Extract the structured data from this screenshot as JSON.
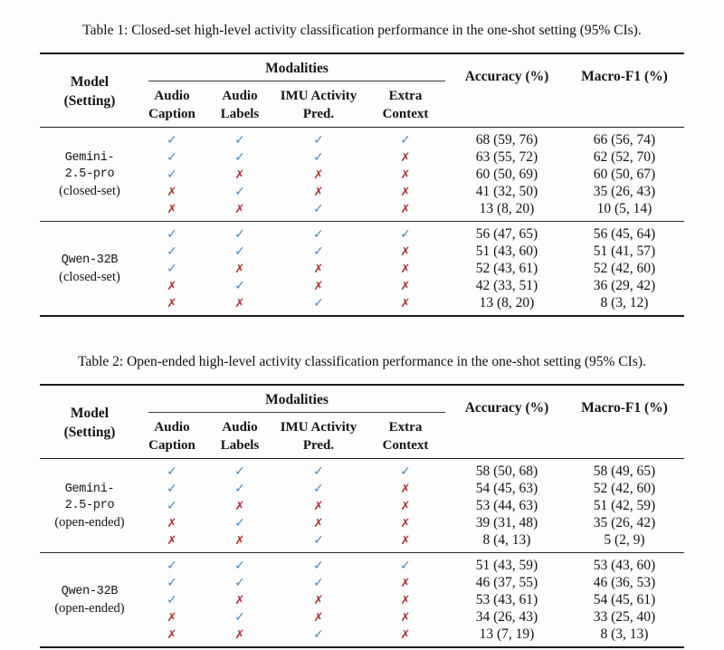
{
  "colors": {
    "check": "#4a86ba",
    "cross": "#ab3232",
    "rule": "#1b1b1b"
  },
  "glyphs": {
    "check": "✓",
    "cross": "✗"
  },
  "header": {
    "model_line1": "Model",
    "model_line2": "(Setting)",
    "modalities": "Modalities",
    "subcols": [
      [
        "Audio",
        "Caption"
      ],
      [
        "Audio",
        "Labels"
      ],
      [
        "IMU Activity",
        "Pred."
      ],
      [
        "Extra",
        "Context"
      ]
    ],
    "accuracy": "Accuracy (%)",
    "macro_f1": "Macro-F1 (%)"
  },
  "tables": [
    {
      "caption": "Table 1: Closed-set high-level activity classification performance in the one-shot setting (95% CIs).",
      "groups": [
        {
          "model_lines": [
            "Gemini-",
            "2.5-pro"
          ],
          "setting": "(closed-set)",
          "rows": [
            {
              "modalities": [
                1,
                1,
                1,
                1
              ],
              "accuracy": "68 (59, 76)",
              "macro_f1": "66 (56, 74)"
            },
            {
              "modalities": [
                1,
                1,
                1,
                0
              ],
              "accuracy": "63 (55, 72)",
              "macro_f1": "62 (52, 70)"
            },
            {
              "modalities": [
                1,
                0,
                0,
                0
              ],
              "accuracy": "60 (50, 69)",
              "macro_f1": "60 (50, 67)"
            },
            {
              "modalities": [
                0,
                1,
                0,
                0
              ],
              "accuracy": "41 (32, 50)",
              "macro_f1": "35 (26, 43)"
            },
            {
              "modalities": [
                0,
                0,
                1,
                0
              ],
              "accuracy": "13 (8, 20)",
              "macro_f1": "10 (5, 14)"
            }
          ]
        },
        {
          "model_lines": [
            "Qwen-32B"
          ],
          "setting": "(closed-set)",
          "rows": [
            {
              "modalities": [
                1,
                1,
                1,
                1
              ],
              "accuracy": "56 (47, 65)",
              "macro_f1": "56 (45, 64)"
            },
            {
              "modalities": [
                1,
                1,
                1,
                0
              ],
              "accuracy": "51 (43, 60)",
              "macro_f1": "51 (41, 57)"
            },
            {
              "modalities": [
                1,
                0,
                0,
                0
              ],
              "accuracy": "52 (43, 61)",
              "macro_f1": "52 (42, 60)"
            },
            {
              "modalities": [
                0,
                1,
                0,
                0
              ],
              "accuracy": "42 (33, 51)",
              "macro_f1": "36 (29, 42)"
            },
            {
              "modalities": [
                0,
                0,
                1,
                0
              ],
              "accuracy": "13 (8, 20)",
              "macro_f1": "8 (3, 12)"
            }
          ]
        }
      ]
    },
    {
      "caption": "Table 2: Open-ended high-level activity classification performance in the one-shot setting (95% CIs).",
      "groups": [
        {
          "model_lines": [
            "Gemini-",
            "2.5-pro"
          ],
          "setting": "(open-ended)",
          "rows": [
            {
              "modalities": [
                1,
                1,
                1,
                1
              ],
              "accuracy": "58 (50, 68)",
              "macro_f1": "58 (49, 65)"
            },
            {
              "modalities": [
                1,
                1,
                1,
                0
              ],
              "accuracy": "54 (45, 63)",
              "macro_f1": "52 (42, 60)"
            },
            {
              "modalities": [
                1,
                0,
                0,
                0
              ],
              "accuracy": "53 (44, 63)",
              "macro_f1": "51 (42, 59)"
            },
            {
              "modalities": [
                0,
                1,
                0,
                0
              ],
              "accuracy": "39 (31, 48)",
              "macro_f1": "35 (26, 42)"
            },
            {
              "modalities": [
                0,
                0,
                1,
                0
              ],
              "accuracy": "8 (4, 13)",
              "macro_f1": "5 (2, 9)"
            }
          ]
        },
        {
          "model_lines": [
            "Qwen-32B"
          ],
          "setting": "(open-ended)",
          "rows": [
            {
              "modalities": [
                1,
                1,
                1,
                1
              ],
              "accuracy": "51 (43, 59)",
              "macro_f1": "53 (43, 60)"
            },
            {
              "modalities": [
                1,
                1,
                1,
                0
              ],
              "accuracy": "46 (37, 55)",
              "macro_f1": "46 (36, 53)"
            },
            {
              "modalities": [
                1,
                0,
                0,
                0
              ],
              "accuracy": "53 (43, 61)",
              "macro_f1": "54 (45, 61)"
            },
            {
              "modalities": [
                0,
                1,
                0,
                0
              ],
              "accuracy": "34 (26, 43)",
              "macro_f1": "33 (25, 40)"
            },
            {
              "modalities": [
                0,
                0,
                1,
                0
              ],
              "accuracy": "13 (7, 19)",
              "macro_f1": "8 (3, 13)"
            }
          ]
        }
      ]
    }
  ]
}
